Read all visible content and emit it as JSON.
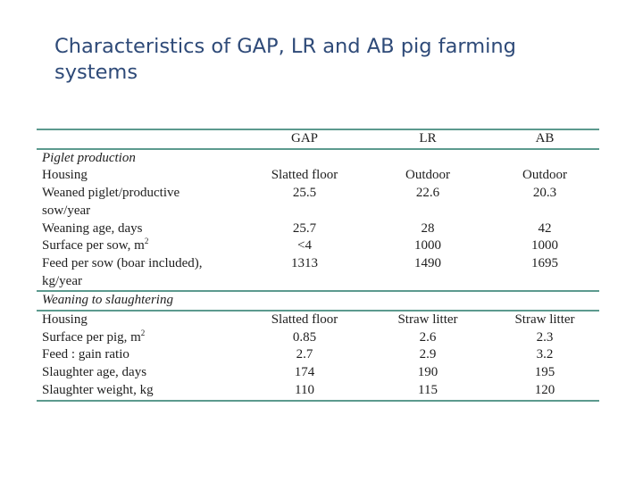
{
  "slide": {
    "title": "Characteristics of GAP, LR and AB pig farming systems"
  },
  "table": {
    "headers": [
      "",
      "GAP",
      "LR",
      "AB"
    ],
    "sections": [
      {
        "title": "Piglet production",
        "rows": [
          {
            "label": "Housing",
            "gap": "Slatted floor",
            "lr": "Outdoor",
            "ab": "Outdoor"
          },
          {
            "label": "Weaned piglet/productive",
            "gap": "25.5",
            "lr": "22.6",
            "ab": "20.3"
          },
          {
            "label": "sow/year",
            "gap": "",
            "lr": "",
            "ab": ""
          },
          {
            "label": "Weaning age, days",
            "gap": "25.7",
            "lr": "28",
            "ab": "42"
          },
          {
            "label": "Surface per sow, m",
            "sup": "2",
            "gap": "<4",
            "lr": "1000",
            "ab": "1000"
          },
          {
            "label": "Feed per sow (boar included),",
            "gap": "1313",
            "lr": "1490",
            "ab": "1695"
          },
          {
            "label": "kg/year",
            "gap": "",
            "lr": "",
            "ab": ""
          }
        ]
      },
      {
        "title": "Weaning to slaughtering",
        "rows": [
          {
            "label": "Housing",
            "gap": "Slatted floor",
            "lr": "Straw litter",
            "ab": "Straw litter"
          },
          {
            "label": "Surface per pig, m",
            "sup": "2",
            "gap": "0.85",
            "lr": "2.6",
            "ab": "2.3"
          },
          {
            "label": "Feed : gain ratio",
            "gap": "2.7",
            "lr": "2.9",
            "ab": "3.2"
          },
          {
            "label": "Slaughter age, days",
            "gap": "174",
            "lr": "190",
            "ab": "195"
          },
          {
            "label": "Slaughter weight, kg",
            "gap": "110",
            "lr": "115",
            "ab": "120"
          }
        ]
      }
    ]
  }
}
